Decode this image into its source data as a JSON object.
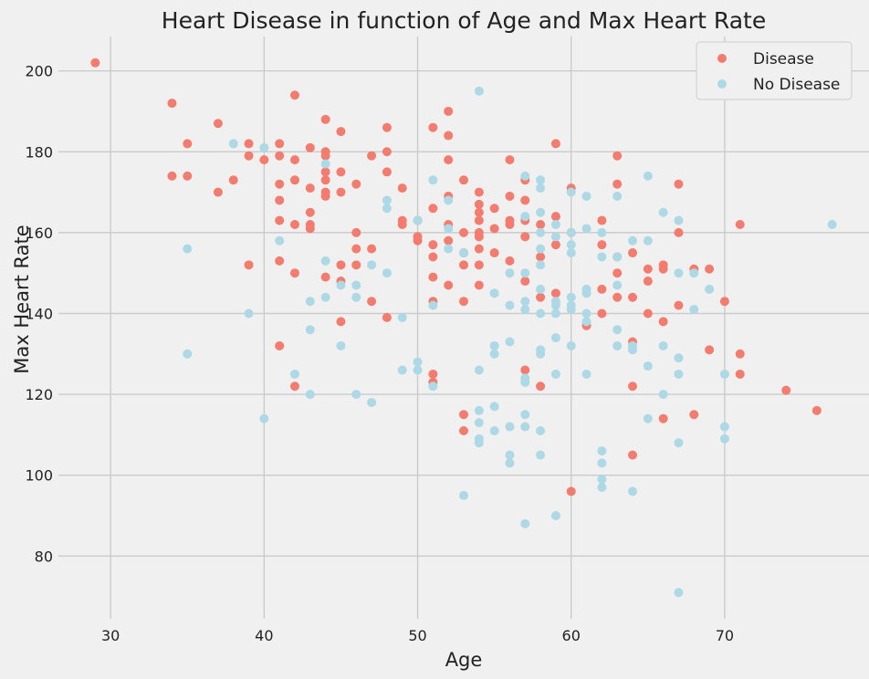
{
  "chart_data": {
    "type": "scatter",
    "title": "Heart Disease in function of Age and Max Heart Rate",
    "xlabel": "Age",
    "ylabel": "Max Heart Rate",
    "xlim": [
      26.6,
      79.4
    ],
    "ylim": [
      64.5,
      208.5
    ],
    "xticks": [
      30,
      40,
      50,
      60,
      70
    ],
    "yticks": [
      80,
      100,
      120,
      140,
      160,
      180,
      200
    ],
    "grid": true,
    "legend_position": "top-right",
    "series": [
      {
        "name": "Disease",
        "color": "#f47c6e",
        "points": [
          [
            29,
            202
          ],
          [
            34,
            192
          ],
          [
            34,
            174
          ],
          [
            35,
            182
          ],
          [
            35,
            174
          ],
          [
            37,
            187
          ],
          [
            37,
            170
          ],
          [
            38,
            173
          ],
          [
            39,
            182
          ],
          [
            39,
            179
          ],
          [
            39,
            152
          ],
          [
            40,
            178
          ],
          [
            41,
            182
          ],
          [
            41,
            179
          ],
          [
            41,
            172
          ],
          [
            41,
            168
          ],
          [
            41,
            163
          ],
          [
            41,
            153
          ],
          [
            41,
            132
          ],
          [
            42,
            194
          ],
          [
            42,
            178
          ],
          [
            42,
            173
          ],
          [
            42,
            162
          ],
          [
            42,
            150
          ],
          [
            42,
            122
          ],
          [
            43,
            181
          ],
          [
            43,
            171
          ],
          [
            43,
            165
          ],
          [
            43,
            162
          ],
          [
            43,
            161
          ],
          [
            44,
            188
          ],
          [
            44,
            180
          ],
          [
            44,
            179
          ],
          [
            44,
            175
          ],
          [
            44,
            173
          ],
          [
            44,
            170
          ],
          [
            44,
            169
          ],
          [
            44,
            149
          ],
          [
            45,
            185
          ],
          [
            45,
            175
          ],
          [
            45,
            170
          ],
          [
            45,
            152
          ],
          [
            45,
            148
          ],
          [
            45,
            138
          ],
          [
            46,
            172
          ],
          [
            46,
            160
          ],
          [
            46,
            156
          ],
          [
            46,
            152
          ],
          [
            47,
            179
          ],
          [
            47,
            156
          ],
          [
            47,
            143
          ],
          [
            48,
            186
          ],
          [
            48,
            180
          ],
          [
            48,
            175
          ],
          [
            48,
            139
          ],
          [
            49,
            171
          ],
          [
            49,
            163
          ],
          [
            49,
            162
          ],
          [
            50,
            163
          ],
          [
            50,
            159
          ],
          [
            50,
            158
          ],
          [
            51,
            186
          ],
          [
            51,
            166
          ],
          [
            51,
            157
          ],
          [
            51,
            154
          ],
          [
            51,
            149
          ],
          [
            51,
            143
          ],
          [
            51,
            125
          ],
          [
            51,
            123
          ],
          [
            52,
            190
          ],
          [
            52,
            184
          ],
          [
            52,
            178
          ],
          [
            52,
            169
          ],
          [
            52,
            162
          ],
          [
            52,
            158
          ],
          [
            52,
            147
          ],
          [
            53,
            173
          ],
          [
            53,
            160
          ],
          [
            53,
            155
          ],
          [
            53,
            152
          ],
          [
            53,
            143
          ],
          [
            53,
            115
          ],
          [
            53,
            111
          ],
          [
            54,
            170
          ],
          [
            54,
            167
          ],
          [
            54,
            165
          ],
          [
            54,
            163
          ],
          [
            54,
            160
          ],
          [
            54,
            159
          ],
          [
            54,
            156
          ],
          [
            54,
            152
          ],
          [
            54,
            147
          ],
          [
            55,
            166
          ],
          [
            55,
            161
          ],
          [
            55,
            155
          ],
          [
            56,
            178
          ],
          [
            56,
            169
          ],
          [
            56,
            163
          ],
          [
            56,
            162
          ],
          [
            56,
            153
          ],
          [
            57,
            173
          ],
          [
            57,
            168
          ],
          [
            57,
            163
          ],
          [
            57,
            159
          ],
          [
            57,
            148
          ],
          [
            57,
            126
          ],
          [
            58,
            162
          ],
          [
            58,
            154
          ],
          [
            58,
            144
          ],
          [
            58,
            122
          ],
          [
            59,
            182
          ],
          [
            59,
            164
          ],
          [
            59,
            157
          ],
          [
            59,
            145
          ],
          [
            60,
            171
          ],
          [
            60,
            160
          ],
          [
            60,
            96
          ],
          [
            61,
            137
          ],
          [
            62,
            163
          ],
          [
            62,
            157
          ],
          [
            62,
            146
          ],
          [
            62,
            140
          ],
          [
            63,
            179
          ],
          [
            63,
            172
          ],
          [
            63,
            154
          ],
          [
            63,
            150
          ],
          [
            63,
            144
          ],
          [
            64,
            155
          ],
          [
            64,
            144
          ],
          [
            64,
            133
          ],
          [
            64,
            122
          ],
          [
            64,
            105
          ],
          [
            65,
            151
          ],
          [
            65,
            148
          ],
          [
            65,
            140
          ],
          [
            66,
            152
          ],
          [
            66,
            151
          ],
          [
            66,
            138
          ],
          [
            66,
            114
          ],
          [
            67,
            172
          ],
          [
            67,
            160
          ],
          [
            67,
            142
          ],
          [
            68,
            151
          ],
          [
            68,
            115
          ],
          [
            69,
            151
          ],
          [
            69,
            131
          ],
          [
            70,
            143
          ],
          [
            71,
            162
          ],
          [
            71,
            130
          ],
          [
            71,
            125
          ],
          [
            74,
            121
          ],
          [
            76,
            116
          ]
        ]
      },
      {
        "name": "No Disease",
        "color": "#add8e6",
        "points": [
          [
            35,
            156
          ],
          [
            35,
            130
          ],
          [
            38,
            182
          ],
          [
            39,
            140
          ],
          [
            40,
            181
          ],
          [
            40,
            114
          ],
          [
            41,
            158
          ],
          [
            42,
            125
          ],
          [
            43,
            143
          ],
          [
            43,
            136
          ],
          [
            43,
            120
          ],
          [
            44,
            177
          ],
          [
            44,
            153
          ],
          [
            44,
            144
          ],
          [
            45,
            147
          ],
          [
            45,
            132
          ],
          [
            46,
            147
          ],
          [
            46,
            144
          ],
          [
            46,
            120
          ],
          [
            47,
            152
          ],
          [
            47,
            118
          ],
          [
            48,
            168
          ],
          [
            48,
            166
          ],
          [
            48,
            150
          ],
          [
            49,
            139
          ],
          [
            49,
            126
          ],
          [
            50,
            163
          ],
          [
            50,
            128
          ],
          [
            50,
            126
          ],
          [
            51,
            173
          ],
          [
            51,
            142
          ],
          [
            51,
            122
          ],
          [
            52,
            168
          ],
          [
            52,
            161
          ],
          [
            52,
            156
          ],
          [
            53,
            155
          ],
          [
            53,
            95
          ],
          [
            54,
            195
          ],
          [
            54,
            126
          ],
          [
            54,
            116
          ],
          [
            54,
            113
          ],
          [
            54,
            109
          ],
          [
            54,
            108
          ],
          [
            55,
            145
          ],
          [
            55,
            132
          ],
          [
            55,
            130
          ],
          [
            55,
            117
          ],
          [
            55,
            111
          ],
          [
            56,
            150
          ],
          [
            56,
            142
          ],
          [
            56,
            133
          ],
          [
            56,
            112
          ],
          [
            56,
            105
          ],
          [
            56,
            103
          ],
          [
            57,
            174
          ],
          [
            57,
            164
          ],
          [
            57,
            150
          ],
          [
            57,
            143
          ],
          [
            57,
            141
          ],
          [
            57,
            124
          ],
          [
            57,
            123
          ],
          [
            57,
            115
          ],
          [
            57,
            112
          ],
          [
            57,
            88
          ],
          [
            58,
            173
          ],
          [
            58,
            171
          ],
          [
            58,
            165
          ],
          [
            58,
            160
          ],
          [
            58,
            156
          ],
          [
            58,
            152
          ],
          [
            58,
            146
          ],
          [
            58,
            140
          ],
          [
            58,
            131
          ],
          [
            58,
            130
          ],
          [
            58,
            111
          ],
          [
            58,
            105
          ],
          [
            59,
            162
          ],
          [
            59,
            159
          ],
          [
            59,
            143
          ],
          [
            59,
            142
          ],
          [
            59,
            140
          ],
          [
            59,
            134
          ],
          [
            59,
            125
          ],
          [
            59,
            90
          ],
          [
            60,
            170
          ],
          [
            60,
            160
          ],
          [
            60,
            157
          ],
          [
            60,
            155
          ],
          [
            60,
            144
          ],
          [
            60,
            142
          ],
          [
            60,
            141
          ],
          [
            60,
            132
          ],
          [
            61,
            169
          ],
          [
            61,
            161
          ],
          [
            61,
            146
          ],
          [
            61,
            145
          ],
          [
            61,
            140
          ],
          [
            61,
            138
          ],
          [
            61,
            125
          ],
          [
            62,
            160
          ],
          [
            62,
            154
          ],
          [
            62,
            106
          ],
          [
            62,
            103
          ],
          [
            62,
            99
          ],
          [
            62,
            97
          ],
          [
            63,
            169
          ],
          [
            63,
            154
          ],
          [
            63,
            147
          ],
          [
            63,
            136
          ],
          [
            63,
            132
          ],
          [
            64,
            158
          ],
          [
            64,
            132
          ],
          [
            64,
            131
          ],
          [
            64,
            96
          ],
          [
            65,
            174
          ],
          [
            65,
            158
          ],
          [
            65,
            127
          ],
          [
            65,
            114
          ],
          [
            66,
            165
          ],
          [
            66,
            132
          ],
          [
            66,
            120
          ],
          [
            67,
            163
          ],
          [
            67,
            150
          ],
          [
            67,
            129
          ],
          [
            67,
            125
          ],
          [
            67,
            108
          ],
          [
            67,
            71
          ],
          [
            68,
            150
          ],
          [
            68,
            141
          ],
          [
            69,
            146
          ],
          [
            70,
            125
          ],
          [
            70,
            112
          ],
          [
            70,
            109
          ],
          [
            77,
            162
          ]
        ]
      }
    ]
  }
}
